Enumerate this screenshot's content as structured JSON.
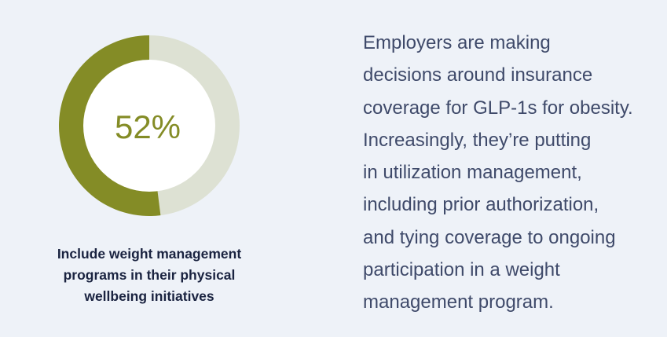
{
  "colors": {
    "background": "#eef2f8",
    "accent": "#848c26",
    "track": "#dde1d3",
    "inner": "#ffffff",
    "caption_text": "#1a2340",
    "body_text": "#3f4a6a"
  },
  "chart_data": {
    "type": "pie",
    "labels": [
      "Include weight management programs in their physical wellbeing initiatives",
      "Remainder"
    ],
    "values": [
      52,
      48
    ],
    "center_label": "52%"
  },
  "caption": {
    "lines": [
      "Include weight management",
      "programs in their physical",
      "wellbeing initiatives"
    ]
  },
  "body": {
    "lines": [
      "Employers are making",
      "decisions around insurance",
      "coverage for GLP-1s for obesity.",
      "Increasingly, they’re putting",
      "in utilization management,",
      "including prior authorization,",
      "and tying coverage to ongoing",
      "participation in a weight",
      "management program."
    ]
  }
}
